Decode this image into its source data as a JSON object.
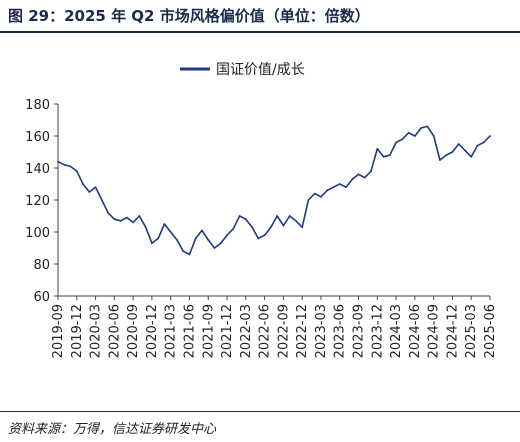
{
  "header": {
    "title": "图 29：2025 年 Q2 市场风格偏价值（单位：倍数）"
  },
  "footer": {
    "source": "资料来源：万得，信达证券研发中心"
  },
  "colors": {
    "series": "#1f3a80",
    "axis": "#444444",
    "title": "#1a2b4c"
  },
  "chart_data": {
    "type": "line",
    "title": "",
    "xlabel": "",
    "ylabel": "",
    "ylim": [
      60,
      180
    ],
    "yticks": [
      60,
      80,
      100,
      120,
      140,
      160,
      180
    ],
    "xticks": [
      "2019-09",
      "2019-12",
      "2020-03",
      "2020-06",
      "2020-09",
      "2020-12",
      "2021-03",
      "2021-06",
      "2021-09",
      "2021-12",
      "2022-03",
      "2022-06",
      "2022-09",
      "2022-12",
      "2023-03",
      "2023-06",
      "2023-09",
      "2023-12",
      "2024-03",
      "2024-06",
      "2024-09",
      "2024-12",
      "2025-03",
      "2025-06"
    ],
    "grid": false,
    "legend_position": "top-center",
    "series": [
      {
        "name": "国证价值/成长",
        "x": [
          "2019-09",
          "2019-10",
          "2019-11",
          "2019-12",
          "2020-01",
          "2020-02",
          "2020-03",
          "2020-04",
          "2020-05",
          "2020-06",
          "2020-07",
          "2020-08",
          "2020-09",
          "2020-10",
          "2020-11",
          "2020-12",
          "2021-01",
          "2021-02",
          "2021-03",
          "2021-04",
          "2021-05",
          "2021-06",
          "2021-07",
          "2021-08",
          "2021-09",
          "2021-10",
          "2021-11",
          "2021-12",
          "2022-01",
          "2022-02",
          "2022-03",
          "2022-04",
          "2022-05",
          "2022-06",
          "2022-07",
          "2022-08",
          "2022-09",
          "2022-10",
          "2022-11",
          "2022-12",
          "2023-01",
          "2023-02",
          "2023-03",
          "2023-04",
          "2023-05",
          "2023-06",
          "2023-07",
          "2023-08",
          "2023-09",
          "2023-10",
          "2023-11",
          "2023-12",
          "2024-01",
          "2024-02",
          "2024-03",
          "2024-04",
          "2024-05",
          "2024-06",
          "2024-07",
          "2024-08",
          "2024-09",
          "2024-10",
          "2024-11",
          "2024-12",
          "2025-01",
          "2025-02",
          "2025-03",
          "2025-04",
          "2025-05",
          "2025-06"
        ],
        "values": [
          144,
          142,
          141,
          138,
          130,
          125,
          128,
          120,
          112,
          108,
          107,
          109,
          106,
          110,
          103,
          93,
          96,
          105,
          100,
          95,
          88,
          86,
          96,
          101,
          95,
          90,
          93,
          98,
          102,
          110,
          108,
          103,
          96,
          98,
          103,
          110,
          104,
          110,
          107,
          103,
          120,
          124,
          122,
          126,
          128,
          130,
          128,
          133,
          136,
          134,
          138,
          152,
          147,
          148,
          156,
          158,
          162,
          160,
          165,
          166,
          160,
          145,
          148,
          150,
          155,
          151,
          147,
          154,
          156,
          160
        ]
      }
    ]
  }
}
